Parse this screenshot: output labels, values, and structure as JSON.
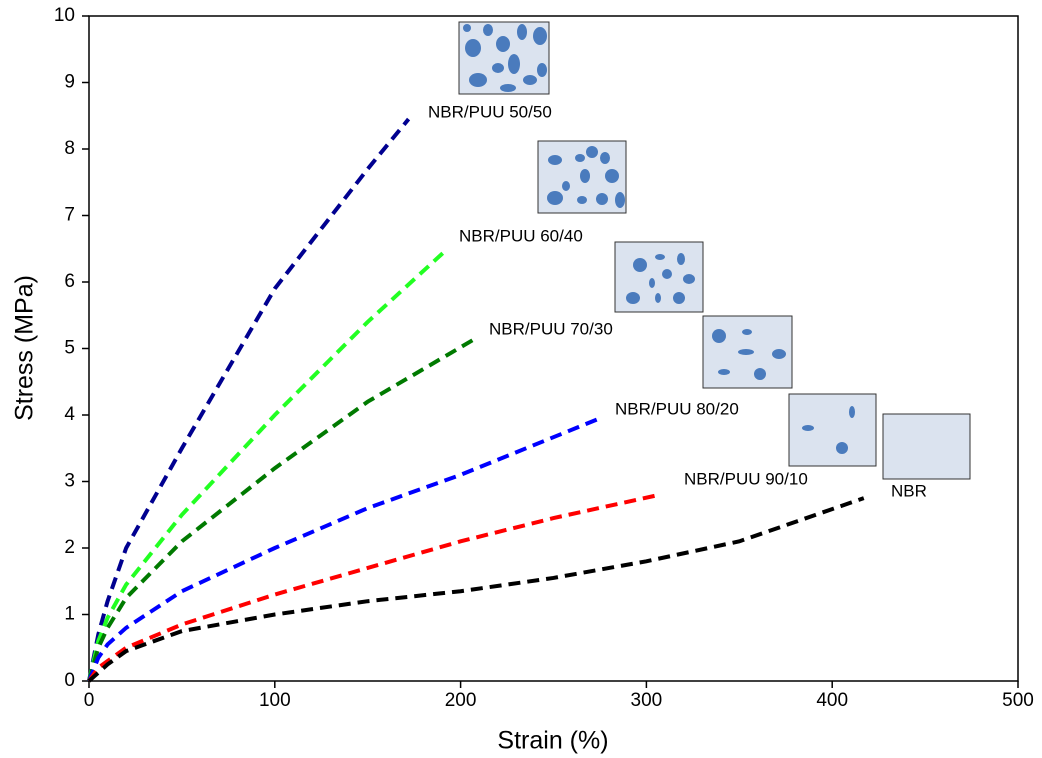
{
  "chart_data": {
    "type": "line",
    "x_label": "Strain (%)",
    "y_label": "Stress (MPa)",
    "xlim": [
      0,
      500
    ],
    "xticks": [
      0,
      100,
      200,
      300,
      400,
      500
    ],
    "ylim": [
      0,
      10
    ],
    "yticks": [
      0,
      1,
      2,
      3,
      4,
      5,
      6,
      7,
      8,
      9,
      10
    ],
    "series": [
      {
        "name": "NBR/PUU 50/50",
        "color": "#000090",
        "x": [
          0,
          5,
          10,
          20,
          50,
          100,
          150,
          172
        ],
        "values": [
          0,
          0.7,
          1.2,
          2.0,
          3.5,
          5.9,
          7.7,
          8.45
        ]
      },
      {
        "name": "NBR/PUU 60/40",
        "color": "#22ff22",
        "x": [
          0,
          5,
          10,
          20,
          50,
          100,
          150,
          193
        ],
        "values": [
          0,
          0.6,
          0.95,
          1.45,
          2.5,
          4.0,
          5.4,
          6.5
        ]
      },
      {
        "name": "NBR/PUU 70/30",
        "color": "#007a00",
        "x": [
          0,
          5,
          10,
          20,
          50,
          100,
          150,
          208
        ],
        "values": [
          0,
          0.5,
          0.8,
          1.25,
          2.1,
          3.2,
          4.2,
          5.15
        ]
      },
      {
        "name": "NBR/PUU 80/20",
        "color": "#0000ff",
        "x": [
          0,
          5,
          10,
          20,
          50,
          100,
          150,
          200,
          275
        ],
        "values": [
          0,
          0.35,
          0.55,
          0.8,
          1.35,
          2.0,
          2.6,
          3.1,
          3.95
        ]
      },
      {
        "name": "NBR/PUU 90/10",
        "color": "#ff0000",
        "x": [
          0,
          5,
          10,
          20,
          50,
          100,
          150,
          200,
          250,
          307
        ],
        "values": [
          0,
          0.2,
          0.3,
          0.5,
          0.85,
          1.3,
          1.7,
          2.1,
          2.45,
          2.8
        ]
      },
      {
        "name": "NBR",
        "color": "#000000",
        "x": [
          0,
          10,
          20,
          50,
          100,
          150,
          200,
          250,
          300,
          350,
          417
        ],
        "values": [
          0,
          0.25,
          0.45,
          0.75,
          1.0,
          1.2,
          1.35,
          1.55,
          1.8,
          2.1,
          2.75
        ]
      }
    ]
  }
}
